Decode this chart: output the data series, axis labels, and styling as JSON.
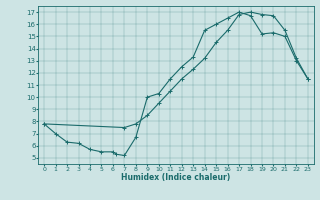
{
  "xlabel": "Humidex (Indice chaleur)",
  "bg_color": "#cde4e4",
  "line_color": "#1a6b6b",
  "curve1_x": [
    0,
    1,
    2,
    3,
    4,
    5,
    6,
    6.3,
    7,
    8,
    9,
    10,
    11,
    12,
    13,
    14,
    15,
    16,
    17,
    18,
    19,
    20,
    21,
    22,
    23
  ],
  "curve1_y": [
    7.8,
    7.0,
    6.3,
    6.2,
    5.7,
    5.5,
    5.5,
    5.3,
    5.2,
    6.7,
    10.0,
    10.3,
    11.5,
    12.5,
    13.3,
    15.5,
    16.0,
    16.5,
    17.0,
    16.7,
    15.2,
    15.3,
    15.0,
    13.0,
    11.5
  ],
  "curve2_x": [
    0,
    7,
    8,
    9,
    10,
    11,
    12,
    13,
    14,
    15,
    16,
    17,
    18,
    19,
    20,
    21,
    22,
    23
  ],
  "curve2_y": [
    7.8,
    7.5,
    7.8,
    8.5,
    9.5,
    10.5,
    11.5,
    12.3,
    13.2,
    14.5,
    15.5,
    16.8,
    17.0,
    16.8,
    16.7,
    15.5,
    13.2,
    11.5
  ],
  "xlim": [
    -0.5,
    23.5
  ],
  "ylim": [
    4.5,
    17.5
  ],
  "xticks": [
    0,
    1,
    2,
    3,
    4,
    5,
    6,
    7,
    8,
    9,
    10,
    11,
    12,
    13,
    14,
    15,
    16,
    17,
    18,
    19,
    20,
    21,
    22,
    23
  ],
  "yticks": [
    5,
    6,
    7,
    8,
    9,
    10,
    11,
    12,
    13,
    14,
    15,
    16,
    17
  ],
  "xlabel_fontsize": 5.5,
  "tick_fontsize": 4.5,
  "ytick_fontsize": 5.0
}
